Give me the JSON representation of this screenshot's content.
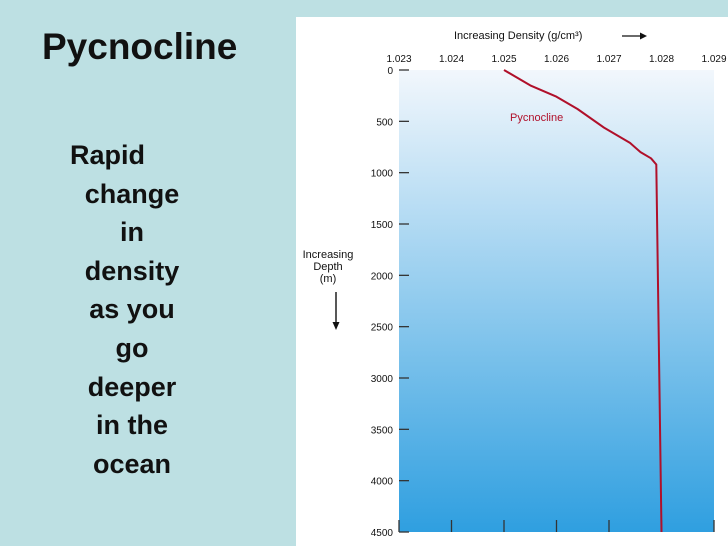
{
  "slide": {
    "title": "Pycnocline",
    "body_lines": [
      "Rapid",
      "change",
      "in",
      "density",
      "as you",
      "go",
      "deeper",
      "in the",
      "ocean"
    ]
  },
  "colors": {
    "background": "#bde0e3",
    "curve": "#b0102a",
    "water_top": "#f2f7fc",
    "water_bottom": "#2f9fe0"
  },
  "chart_data": {
    "type": "line",
    "xlabel": "Increasing Density (g/cm³)",
    "ylabel_lines": [
      "Increasing",
      "Depth",
      "(m)"
    ],
    "xlim": [
      1.023,
      1.029
    ],
    "ylim": [
      0,
      4500
    ],
    "x_ticks": [
      "1.023",
      "1.024",
      "1.025",
      "1.026",
      "1.027",
      "1.028",
      "1.029"
    ],
    "y_ticks": [
      "0",
      "500",
      "1000",
      "1500",
      "2000",
      "2500",
      "3000",
      "3500",
      "4000",
      "4500"
    ],
    "annotation": "Pycnocline",
    "y_axis_inverted": true,
    "series": [
      {
        "x": [
          1.025,
          1.0255,
          1.026,
          1.0264,
          1.0269,
          1.0274,
          1.0276,
          1.0278,
          1.0279,
          1.028
        ],
        "y": [
          0,
          150,
          260,
          380,
          560,
          710,
          800,
          860,
          920,
          4500
        ]
      }
    ]
  }
}
